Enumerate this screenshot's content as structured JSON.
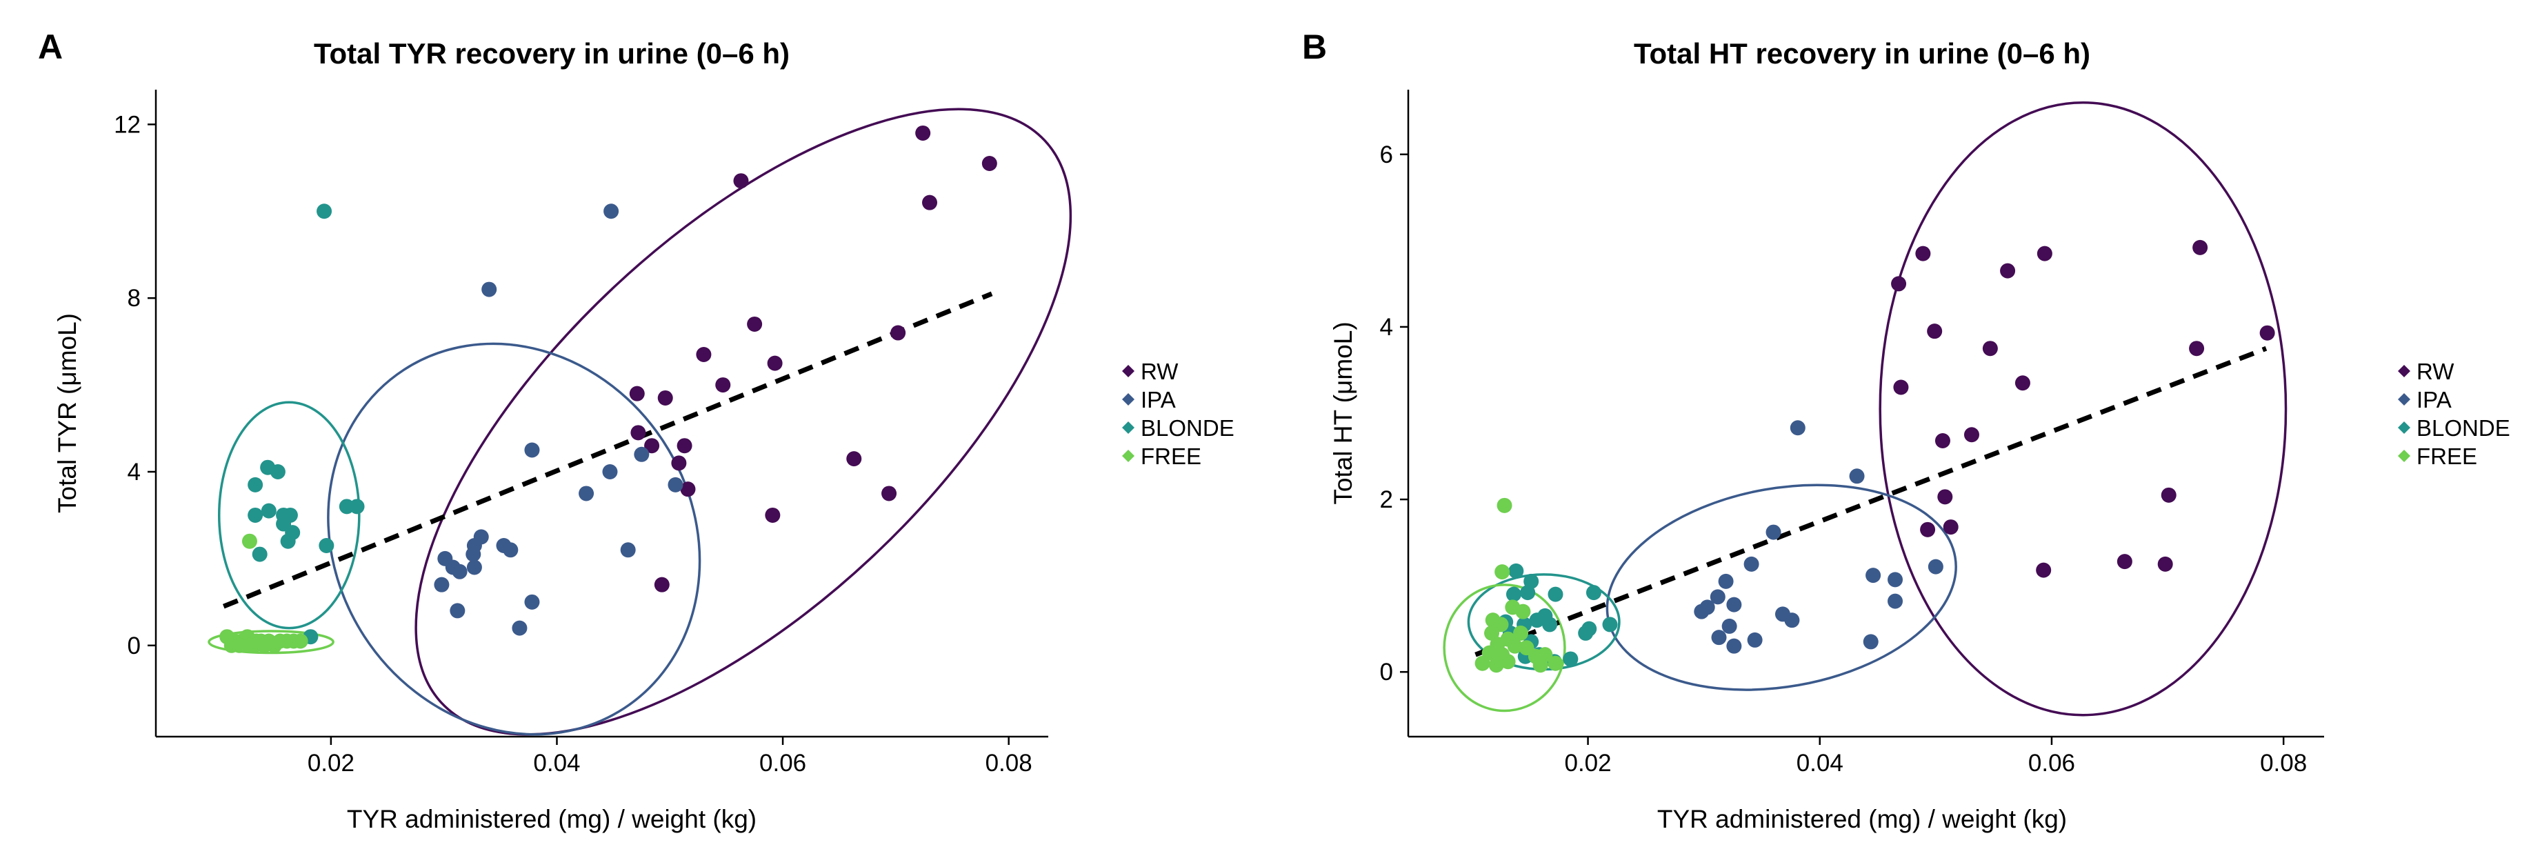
{
  "colors": {
    "RW": "#440c54",
    "IPA": "#3b5a8c",
    "BLONDE": "#22948c",
    "FREE": "#6fcf4f"
  },
  "legend": [
    "RW",
    "IPA",
    "BLONDE",
    "FREE"
  ],
  "chart_data": [
    {
      "type": "scatter",
      "panel_label": "A",
      "title": "Total TYR recovery in urine (0–6 h)",
      "xlabel": "TYR administered (mg) / weight (kg)",
      "ylabel": "Total TYR (μmoL)",
      "xlim": [
        0.0045,
        0.0835
      ],
      "ylim": [
        -2.1,
        12.8
      ],
      "xticks": [
        0.02,
        0.04,
        0.06,
        0.08
      ],
      "xtick_labels": [
        "0.02",
        "0.04",
        "0.06",
        "0.08"
      ],
      "yticks": [
        0,
        4,
        8,
        12
      ],
      "ytick_labels": [
        "0",
        "4",
        "8",
        "12"
      ],
      "trend": {
        "x": [
          0.0105,
          0.0785
        ],
        "y": [
          0.9,
          8.1
        ]
      },
      "ellipses": [
        {
          "group": "RW",
          "cx": 0.0565,
          "cy": 5.15,
          "rx": 0.0365,
          "ry": 4.3,
          "angle": -43
        },
        {
          "group": "IPA",
          "cx": 0.0362,
          "cy": 2.45,
          "rx": 0.0158,
          "ry": 4.65,
          "angle": -33
        },
        {
          "group": "BLONDE",
          "cx": 0.0163,
          "cy": 3.0,
          "rx": 0.0062,
          "ry": 2.6,
          "angle": 0
        },
        {
          "group": "FREE",
          "cx": 0.0147,
          "cy": 0.08,
          "rx": 0.0055,
          "ry": 0.25,
          "angle": 0
        }
      ],
      "series": [
        {
          "name": "RW",
          "points": [
            [
              0.0724,
              11.8
            ],
            [
              0.0783,
              11.1
            ],
            [
              0.073,
              10.2
            ],
            [
              0.0563,
              10.7
            ],
            [
              0.0702,
              7.2
            ],
            [
              0.0575,
              7.4
            ],
            [
              0.053,
              6.7
            ],
            [
              0.0547,
              6.0
            ],
            [
              0.0593,
              6.5
            ],
            [
              0.0471,
              5.8
            ],
            [
              0.0496,
              5.7
            ],
            [
              0.0484,
              4.6
            ],
            [
              0.0472,
              4.9
            ],
            [
              0.0513,
              4.6
            ],
            [
              0.0508,
              4.2
            ],
            [
              0.0516,
              3.6
            ],
            [
              0.0663,
              4.3
            ],
            [
              0.0694,
              3.5
            ],
            [
              0.0591,
              3.0
            ],
            [
              0.0493,
              1.4
            ]
          ]
        },
        {
          "name": "IPA",
          "points": [
            [
              0.0448,
              10.0
            ],
            [
              0.034,
              8.2
            ],
            [
              0.0378,
              4.5
            ],
            [
              0.0475,
              4.4
            ],
            [
              0.0447,
              4.0
            ],
            [
              0.0426,
              3.5
            ],
            [
              0.0505,
              3.7
            ],
            [
              0.0333,
              2.5
            ],
            [
              0.0326,
              2.1
            ],
            [
              0.0353,
              2.3
            ],
            [
              0.0327,
              2.3
            ],
            [
              0.0359,
              2.2
            ],
            [
              0.0301,
              2.0
            ],
            [
              0.0327,
              1.8
            ],
            [
              0.0308,
              1.8
            ],
            [
              0.0314,
              1.7
            ],
            [
              0.0298,
              1.4
            ],
            [
              0.0378,
              1.0
            ],
            [
              0.0312,
              0.8
            ],
            [
              0.0367,
              0.4
            ],
            [
              0.0463,
              2.2
            ]
          ]
        },
        {
          "name": "BLONDE",
          "points": [
            [
              0.0194,
              10.0
            ],
            [
              0.0144,
              4.1
            ],
            [
              0.0153,
              4.0
            ],
            [
              0.0133,
              3.7
            ],
            [
              0.0158,
              3.0
            ],
            [
              0.0133,
              3.0
            ],
            [
              0.0145,
              3.1
            ],
            [
              0.0164,
              3.0
            ],
            [
              0.0158,
              2.8
            ],
            [
              0.0166,
              2.6
            ],
            [
              0.0214,
              3.2
            ],
            [
              0.0223,
              3.2
            ],
            [
              0.0162,
              2.4
            ],
            [
              0.0196,
              2.3
            ],
            [
              0.0137,
              2.1
            ],
            [
              0.0182,
              0.2
            ]
          ]
        },
        {
          "name": "FREE",
          "points": [
            [
              0.0128,
              2.4
            ],
            [
              0.0108,
              0.2
            ],
            [
              0.0115,
              0.1
            ],
            [
              0.0121,
              0.1
            ],
            [
              0.0126,
              0.2
            ],
            [
              0.0132,
              0.0
            ],
            [
              0.0138,
              0.1
            ],
            [
              0.0145,
              0.1
            ],
            [
              0.015,
              0.0
            ],
            [
              0.0155,
              0.1
            ],
            [
              0.0161,
              0.1
            ],
            [
              0.0167,
              0.1
            ],
            [
              0.0173,
              0.1
            ],
            [
              0.0112,
              0.0
            ],
            [
              0.0119,
              0.0
            ],
            [
              0.0134,
              0.1
            ],
            [
              0.0128,
              0.0
            ],
            [
              0.0141,
              0.0
            ]
          ]
        }
      ]
    },
    {
      "type": "scatter",
      "panel_label": "B",
      "title": "Total HT recovery in urine (0–6 h)",
      "xlabel": "TYR administered (mg) / weight (kg)",
      "ylabel": "Total HT (μmoL)",
      "xlim": [
        0.0045,
        0.0835
      ],
      "ylim": [
        -0.75,
        6.75
      ],
      "xticks": [
        0.02,
        0.04,
        0.06,
        0.08
      ],
      "xtick_labels": [
        "0.02",
        "0.04",
        "0.06",
        "0.08"
      ],
      "yticks": [
        0,
        2,
        4,
        6
      ],
      "ytick_labels": [
        "0",
        "2",
        "4",
        "6"
      ],
      "trend": {
        "x": [
          0.0103,
          0.0785
        ],
        "y": [
          0.2,
          3.75
        ]
      },
      "ellipses": [
        {
          "group": "RW",
          "cx": 0.0627,
          "cy": 3.05,
          "rx": 0.0175,
          "ry": 3.55,
          "angle": 0
        },
        {
          "group": "IPA",
          "cx": 0.0367,
          "cy": 0.98,
          "rx": 0.0152,
          "ry": 1.15,
          "angle": -10
        },
        {
          "group": "BLONDE",
          "cx": 0.0162,
          "cy": 0.58,
          "rx": 0.0065,
          "ry": 0.55,
          "angle": 0
        },
        {
          "group": "FREE",
          "cx": 0.0128,
          "cy": 0.28,
          "rx": 0.0052,
          "ry": 0.73,
          "angle": 0
        }
      ],
      "series": [
        {
          "name": "RW",
          "points": [
            [
              0.0728,
              4.92
            ],
            [
              0.0489,
              4.85
            ],
            [
              0.0594,
              4.85
            ],
            [
              0.0562,
              4.65
            ],
            [
              0.0468,
              4.5
            ],
            [
              0.0499,
              3.95
            ],
            [
              0.0786,
              3.93
            ],
            [
              0.0547,
              3.75
            ],
            [
              0.0725,
              3.75
            ],
            [
              0.0575,
              3.35
            ],
            [
              0.047,
              3.3
            ],
            [
              0.0531,
              2.75
            ],
            [
              0.0506,
              2.68
            ],
            [
              0.0701,
              2.05
            ],
            [
              0.0508,
              2.03
            ],
            [
              0.0493,
              1.65
            ],
            [
              0.0513,
              1.68
            ],
            [
              0.0663,
              1.28
            ],
            [
              0.0698,
              1.25
            ],
            [
              0.0593,
              1.18
            ]
          ]
        },
        {
          "name": "IPA",
          "points": [
            [
              0.0381,
              2.83
            ],
            [
              0.0432,
              2.27
            ],
            [
              0.036,
              1.62
            ],
            [
              0.0341,
              1.25
            ],
            [
              0.05,
              1.22
            ],
            [
              0.0446,
              1.12
            ],
            [
              0.0465,
              1.07
            ],
            [
              0.0319,
              1.05
            ],
            [
              0.0312,
              0.87
            ],
            [
              0.0326,
              0.78
            ],
            [
              0.0303,
              0.75
            ],
            [
              0.0368,
              0.67
            ],
            [
              0.0376,
              0.6
            ],
            [
              0.0322,
              0.53
            ],
            [
              0.0298,
              0.7
            ],
            [
              0.0465,
              0.82
            ],
            [
              0.0313,
              0.4
            ],
            [
              0.0326,
              0.3
            ],
            [
              0.0344,
              0.37
            ],
            [
              0.0444,
              0.35
            ]
          ]
        },
        {
          "name": "BLONDE",
          "points": [
            [
              0.0138,
              1.17
            ],
            [
              0.0151,
              1.05
            ],
            [
              0.0148,
              0.92
            ],
            [
              0.0136,
              0.9
            ],
            [
              0.0172,
              0.9
            ],
            [
              0.0205,
              0.92
            ],
            [
              0.0219,
              0.55
            ],
            [
              0.0129,
              0.58
            ],
            [
              0.0145,
              0.55
            ],
            [
              0.0156,
              0.6
            ],
            [
              0.0163,
              0.65
            ],
            [
              0.0167,
              0.55
            ],
            [
              0.0201,
              0.5
            ],
            [
              0.0198,
              0.45
            ],
            [
              0.0133,
              0.45
            ],
            [
              0.0151,
              0.35
            ],
            [
              0.0158,
              0.2
            ],
            [
              0.0185,
              0.15
            ],
            [
              0.0146,
              0.18
            ],
            [
              0.0171,
              0.12
            ]
          ]
        },
        {
          "name": "FREE",
          "points": [
            [
              0.0128,
              1.93
            ],
            [
              0.0126,
              1.16
            ],
            [
              0.0135,
              0.75
            ],
            [
              0.0144,
              0.7
            ],
            [
              0.0118,
              0.6
            ],
            [
              0.0125,
              0.55
            ],
            [
              0.0142,
              0.45
            ],
            [
              0.0117,
              0.45
            ],
            [
              0.0131,
              0.38
            ],
            [
              0.0122,
              0.32
            ],
            [
              0.0137,
              0.3
            ],
            [
              0.0147,
              0.28
            ],
            [
              0.0115,
              0.22
            ],
            [
              0.0126,
              0.2
            ],
            [
              0.0155,
              0.18
            ],
            [
              0.0163,
              0.2
            ],
            [
              0.0109,
              0.1
            ],
            [
              0.0121,
              0.08
            ],
            [
              0.0131,
              0.12
            ],
            [
              0.0159,
              0.08
            ],
            [
              0.0172,
              0.1
            ]
          ]
        }
      ]
    }
  ]
}
